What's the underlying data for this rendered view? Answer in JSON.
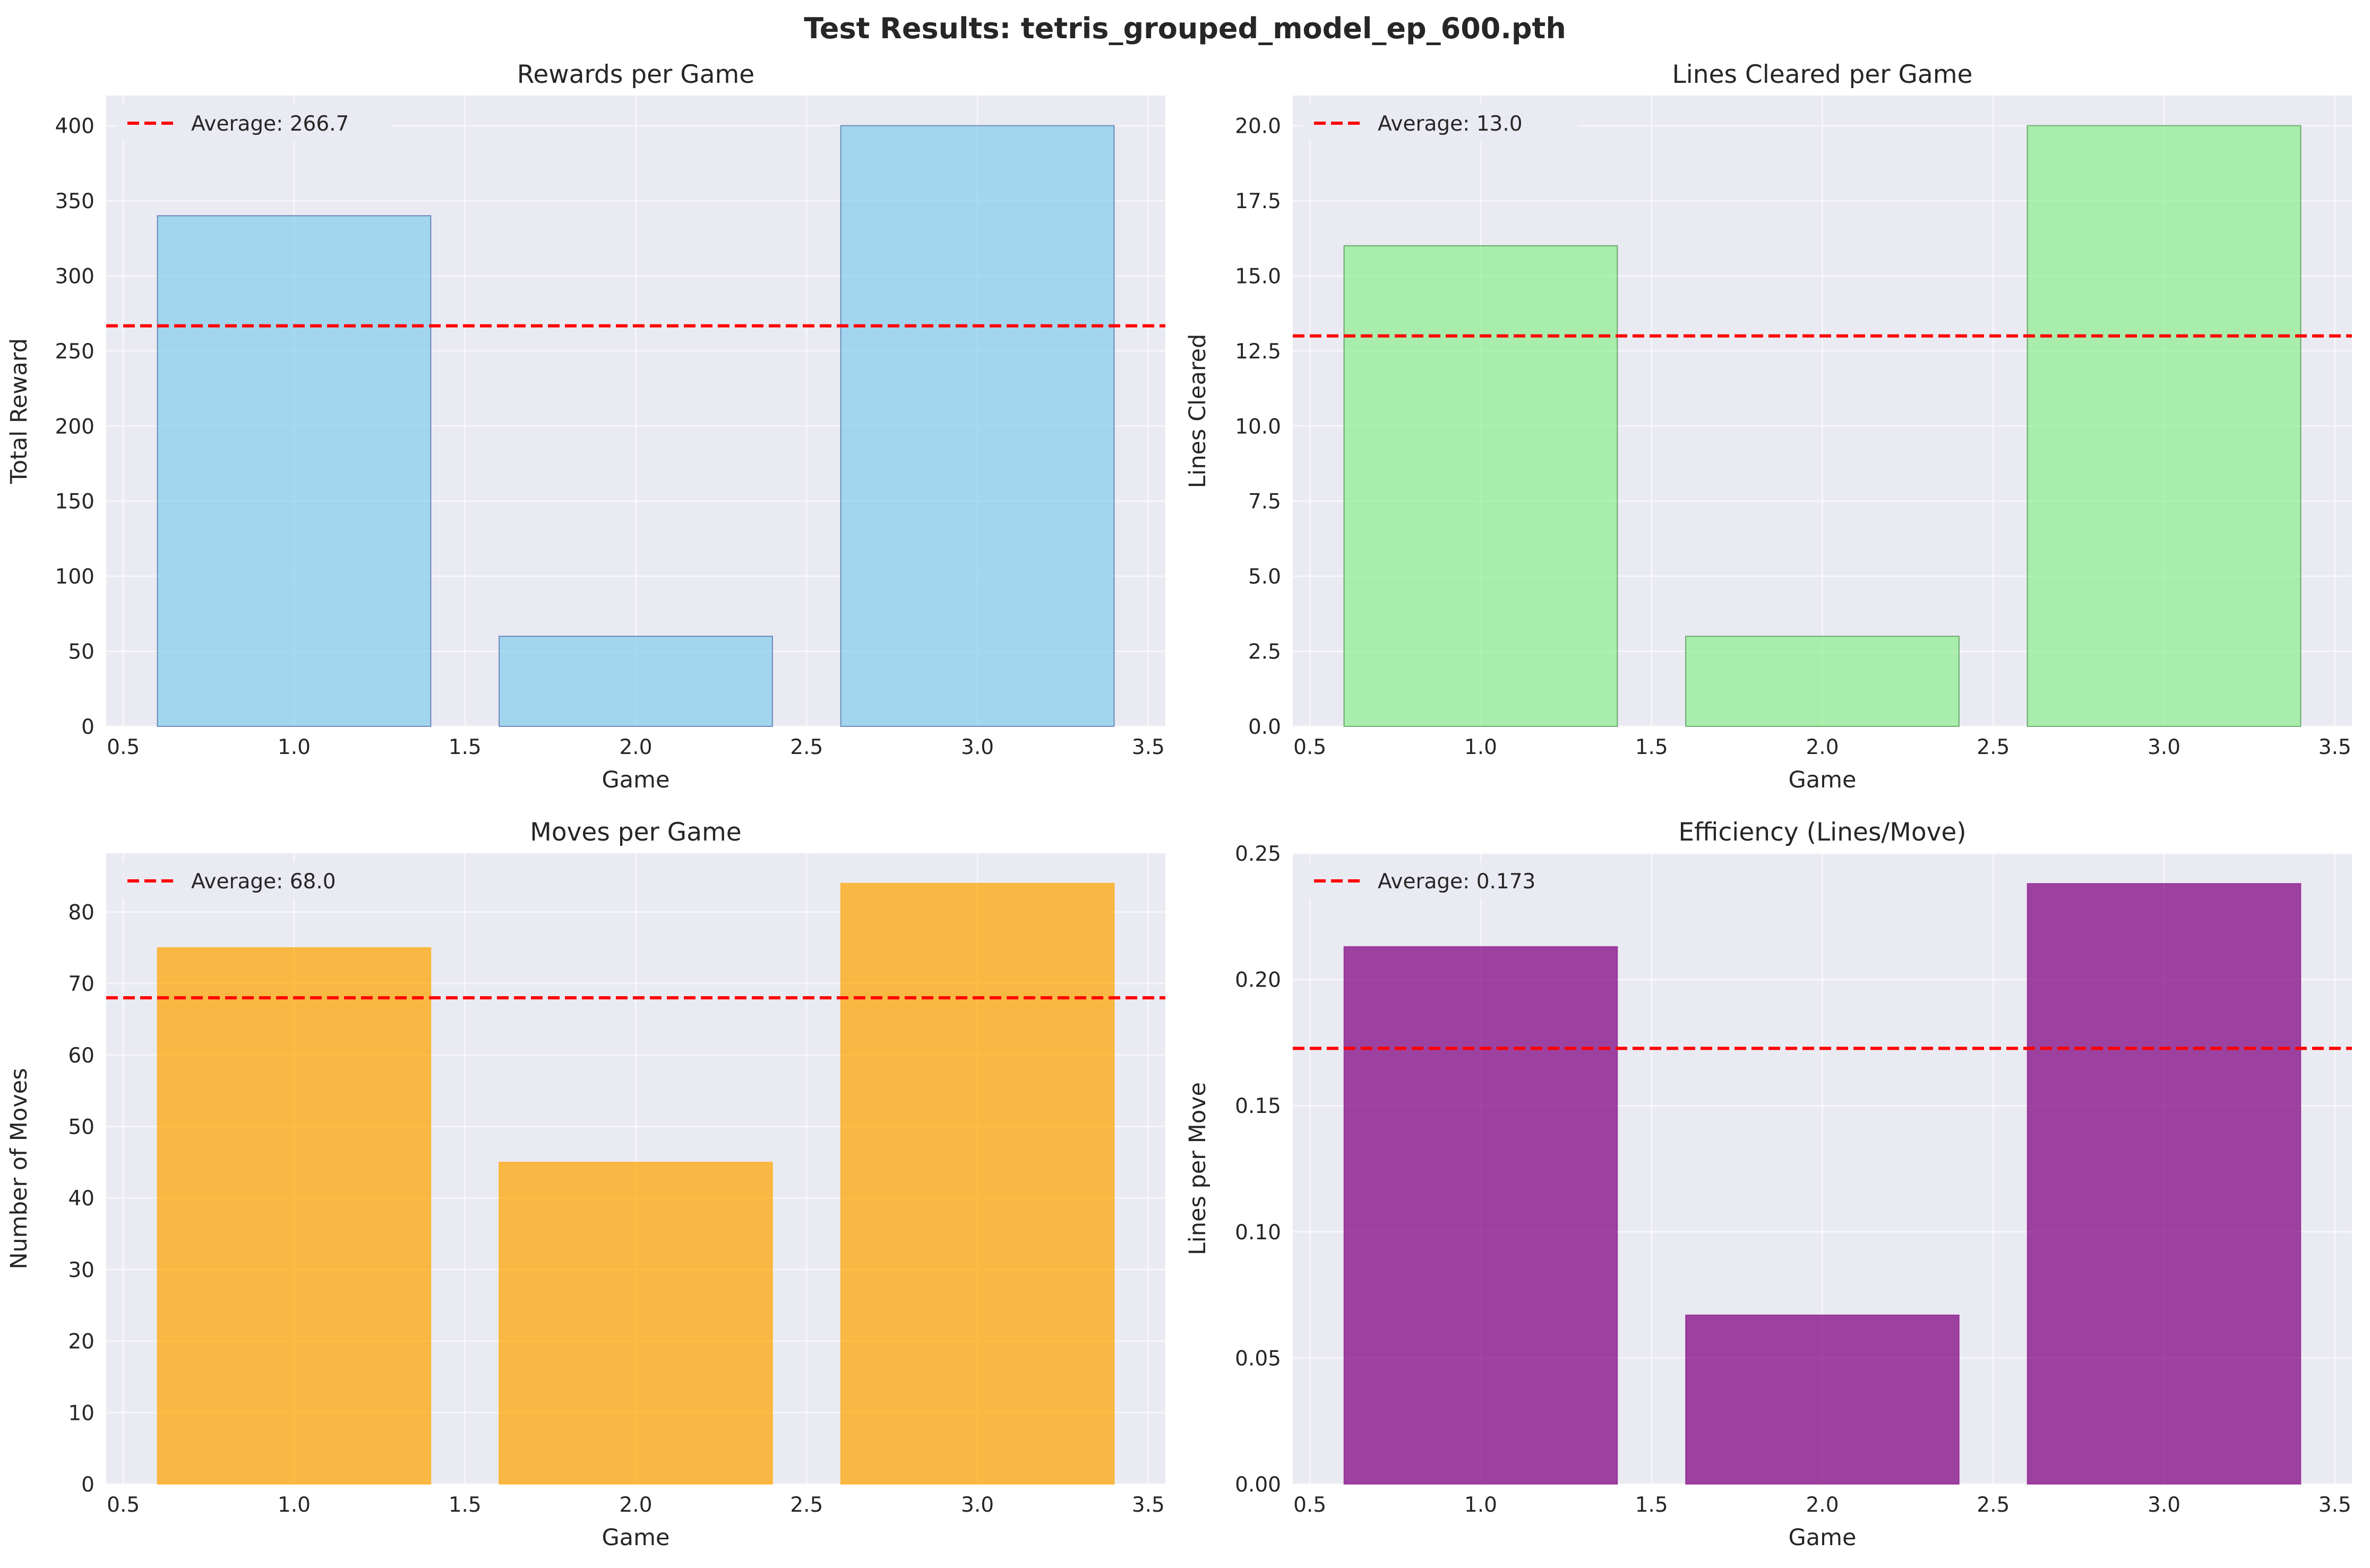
{
  "figure": {
    "title": "Test Results: tetris_grouped_model_ep_600.pth",
    "background": "#ffffff",
    "axes_facecolor": "#eaeaf2",
    "grid_color": "#ffffff"
  },
  "chart_data": [
    {
      "type": "bar",
      "title": "Rewards per Game",
      "xlabel": "Game",
      "ylabel": "Total Reward",
      "x": [
        1,
        2,
        3
      ],
      "values": [
        340,
        60,
        400
      ],
      "xlim": [
        0.45,
        3.55
      ],
      "ylim": [
        0,
        420
      ],
      "xticks": [
        0.5,
        1.0,
        1.5,
        2.0,
        2.5,
        3.0,
        3.5
      ],
      "xtick_labels": [
        "0.5",
        "1.0",
        "1.5",
        "2.0",
        "2.5",
        "3.0",
        "3.5"
      ],
      "yticks": [
        0,
        50,
        100,
        150,
        200,
        250,
        300,
        350,
        400
      ],
      "ytick_labels": [
        "0",
        "50",
        "100",
        "150",
        "200",
        "250",
        "300",
        "350",
        "400"
      ],
      "bar_width": 0.8,
      "bar_color": "#87ceeb",
      "bar_edge_color": "#1f3f8f",
      "average": 266.7,
      "average_label": "Average: 266.7",
      "average_color": "#ff0000",
      "legend_position": "upper-left",
      "grid": true
    },
    {
      "type": "bar",
      "title": "Lines Cleared per Game",
      "xlabel": "Game",
      "ylabel": "Lines Cleared",
      "x": [
        1,
        2,
        3
      ],
      "values": [
        16,
        3,
        20
      ],
      "xlim": [
        0.45,
        3.55
      ],
      "ylim": [
        0,
        21
      ],
      "xticks": [
        0.5,
        1.0,
        1.5,
        2.0,
        2.5,
        3.0,
        3.5
      ],
      "xtick_labels": [
        "0.5",
        "1.0",
        "1.5",
        "2.0",
        "2.5",
        "3.0",
        "3.5"
      ],
      "yticks": [
        0,
        2.5,
        5,
        7.5,
        10,
        12.5,
        15,
        17.5,
        20
      ],
      "ytick_labels": [
        "0.0",
        "2.5",
        "5.0",
        "7.5",
        "10.0",
        "12.5",
        "15.0",
        "17.5",
        "20.0"
      ],
      "bar_width": 0.8,
      "bar_color": "#90ee90",
      "bar_edge_color": "#1f6f1f",
      "average": 13.0,
      "average_label": "Average: 13.0",
      "average_color": "#ff0000",
      "legend_position": "upper-left",
      "grid": true
    },
    {
      "type": "bar",
      "title": "Moves per Game",
      "xlabel": "Game",
      "ylabel": "Number of Moves",
      "x": [
        1,
        2,
        3
      ],
      "values": [
        75,
        45,
        84
      ],
      "xlim": [
        0.45,
        3.55
      ],
      "ylim": [
        0,
        88.2
      ],
      "xticks": [
        0.5,
        1.0,
        1.5,
        2.0,
        2.5,
        3.0,
        3.5
      ],
      "xtick_labels": [
        "0.5",
        "1.0",
        "1.5",
        "2.0",
        "2.5",
        "3.0",
        "3.5"
      ],
      "yticks": [
        0,
        10,
        20,
        30,
        40,
        50,
        60,
        70,
        80
      ],
      "ytick_labels": [
        "0",
        "10",
        "20",
        "30",
        "40",
        "50",
        "60",
        "70",
        "80"
      ],
      "bar_width": 0.8,
      "bar_color": "#ffa500",
      "bar_edge_color": "#ffa500",
      "average": 68.0,
      "average_label": "Average: 68.0",
      "average_color": "#ff0000",
      "legend_position": "upper-left",
      "grid": true
    },
    {
      "type": "bar",
      "title": "Efficiency (Lines/Move)",
      "xlabel": "Game",
      "ylabel": "Lines per Move",
      "x": [
        1,
        2,
        3
      ],
      "values": [
        0.213,
        0.067,
        0.238
      ],
      "xlim": [
        0.45,
        3.55
      ],
      "ylim": [
        0,
        0.25
      ],
      "xticks": [
        0.5,
        1.0,
        1.5,
        2.0,
        2.5,
        3.0,
        3.5
      ],
      "xtick_labels": [
        "0.5",
        "1.0",
        "1.5",
        "2.0",
        "2.5",
        "3.0",
        "3.5"
      ],
      "yticks": [
        0,
        0.05,
        0.1,
        0.15,
        0.2,
        0.25
      ],
      "ytick_labels": [
        "0.00",
        "0.05",
        "0.10",
        "0.15",
        "0.20",
        "0.25"
      ],
      "bar_width": 0.8,
      "bar_color": "#800080",
      "bar_edge_color": "#800080",
      "average": 0.1727,
      "average_label": "Average: 0.173",
      "average_color": "#ff0000",
      "legend_position": "upper-left",
      "grid": true
    }
  ]
}
